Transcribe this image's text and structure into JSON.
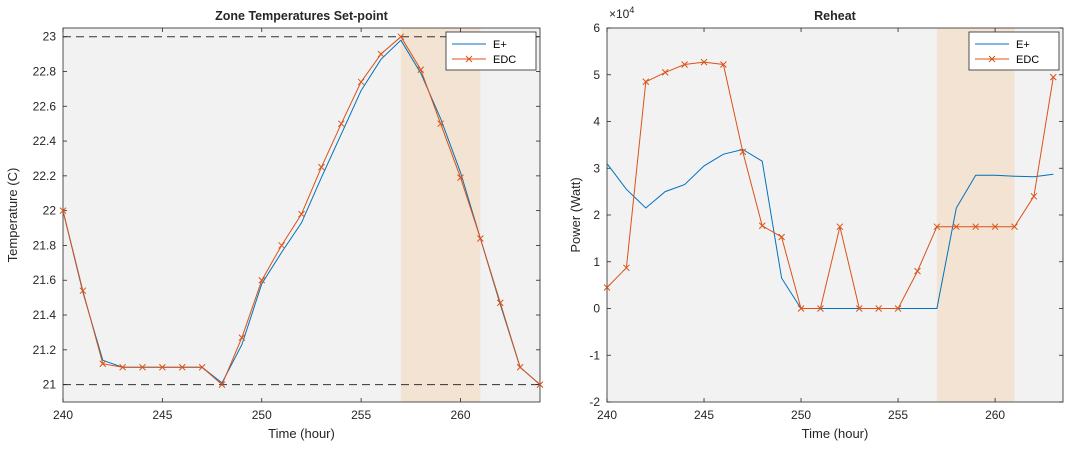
{
  "chart_data": [
    {
      "type": "line",
      "title": "Zone Temperatures Set-point",
      "xlabel": "Time (hour)",
      "ylabel": "Temperature (C)",
      "xlim": [
        240,
        264
      ],
      "ylim": [
        20.9,
        23.05
      ],
      "xticks": [
        "240",
        "245",
        "250",
        "255",
        "260"
      ],
      "yticks": [
        "21",
        "21.2",
        "21.4",
        "21.6",
        "21.8",
        "22",
        "22.2",
        "22.4",
        "22.6",
        "22.8",
        "23"
      ],
      "grid": false,
      "legend": "top-right",
      "background": "#f2f2f2",
      "highlight_band": {
        "x0": 257,
        "x1": 261,
        "color": "#f3e3d3"
      },
      "reference_lines": [
        21,
        23
      ],
      "series": [
        {
          "name": "E+",
          "color": "#0072bd",
          "marker": "none",
          "x": [
            240,
            241,
            242,
            243,
            244,
            245,
            246,
            247,
            248,
            249,
            250,
            251,
            252,
            253,
            254,
            255,
            256,
            257,
            258,
            259,
            260,
            261,
            262,
            263,
            264
          ],
          "values": [
            22.0,
            21.53,
            21.14,
            21.1,
            21.1,
            21.1,
            21.1,
            21.1,
            21.01,
            21.23,
            21.58,
            21.76,
            21.93,
            22.19,
            22.44,
            22.69,
            22.87,
            22.98,
            22.79,
            22.53,
            22.22,
            21.84,
            21.46,
            21.1,
            21.0
          ]
        },
        {
          "name": "EDC",
          "color": "#d95319",
          "marker": "x",
          "x": [
            240,
            241,
            242,
            243,
            244,
            245,
            246,
            247,
            248,
            249,
            250,
            251,
            252,
            253,
            254,
            255,
            256,
            257,
            258,
            259,
            260,
            261,
            262,
            263,
            264
          ],
          "values": [
            22.0,
            21.54,
            21.12,
            21.1,
            21.1,
            21.1,
            21.1,
            21.1,
            21.0,
            21.27,
            21.6,
            21.8,
            21.98,
            22.25,
            22.5,
            22.74,
            22.9,
            23.0,
            22.81,
            22.5,
            22.19,
            21.84,
            21.47,
            21.1,
            21.0
          ]
        }
      ]
    },
    {
      "type": "line",
      "title": "Reheat",
      "xlabel": "Time (hour)",
      "ylabel": "Power (Watt)",
      "exponent_label": "×10",
      "exponent_power": "4",
      "xlim": [
        240,
        263.5
      ],
      "ylim": [
        -2,
        6
      ],
      "xticks": [
        "240",
        "245",
        "250",
        "255",
        "260"
      ],
      "yticks": [
        "-2",
        "-1",
        "0",
        "1",
        "2",
        "3",
        "4",
        "5",
        "6"
      ],
      "grid": false,
      "legend": "top-right",
      "background": "#f2f2f2",
      "highlight_band": {
        "x0": 257,
        "x1": 261,
        "color": "#f3e3d3"
      },
      "series": [
        {
          "name": "E+",
          "color": "#0072bd",
          "marker": "none",
          "x": [
            240,
            241,
            242,
            243,
            244,
            245,
            246,
            247,
            248,
            249,
            250,
            251,
            252,
            253,
            254,
            255,
            256,
            257,
            258,
            259,
            260,
            261,
            262,
            263
          ],
          "values": [
            3.1,
            2.55,
            2.15,
            2.5,
            2.65,
            3.05,
            3.3,
            3.4,
            3.15,
            0.65,
            0.0,
            0.0,
            0.0,
            0.0,
            0.0,
            0.0,
            0.0,
            0.0,
            2.15,
            2.85,
            2.85,
            2.83,
            2.82,
            2.87
          ]
        },
        {
          "name": "EDC",
          "color": "#d95319",
          "marker": "x",
          "x": [
            240,
            241,
            242,
            243,
            244,
            245,
            246,
            247,
            248,
            249,
            250,
            251,
            252,
            253,
            254,
            255,
            256,
            257,
            258,
            259,
            260,
            261,
            262,
            263
          ],
          "values": [
            0.45,
            0.87,
            4.85,
            5.05,
            5.22,
            5.27,
            5.22,
            3.35,
            1.77,
            1.53,
            0.0,
            0.0,
            1.75,
            0.0,
            0.0,
            0.0,
            0.8,
            1.75,
            1.75,
            1.75,
            1.75,
            1.75,
            2.4,
            4.95
          ]
        }
      ]
    }
  ]
}
